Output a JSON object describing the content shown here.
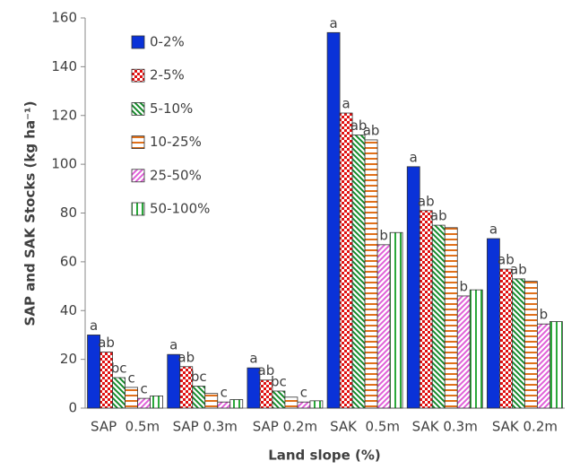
{
  "chart_data": {
    "type": "bar",
    "x_label": "Land slope (%)",
    "y_label": "SAP and SAK Stocks (kg ha⁻¹)",
    "categories": [
      "SAP  0.5m",
      "SAP 0.3m",
      "SAP 0.2m",
      "SAK  0.5m",
      "SAK 0.3m",
      "SAK 0.2m"
    ],
    "ylim": [
      0,
      160
    ],
    "yticks": [
      0,
      20,
      40,
      60,
      80,
      100,
      120,
      140,
      160
    ],
    "series": [
      {
        "name": "0-2%",
        "color": "#0a32d8",
        "pattern": "solid",
        "values": [
          30,
          22,
          16.5,
          154,
          99,
          69.5
        ],
        "letters": [
          "a",
          "a",
          "a",
          "a",
          "a",
          "a"
        ]
      },
      {
        "name": "2-5%",
        "color": "#e01010",
        "pattern": "checker",
        "values": [
          23,
          17,
          11.5,
          121,
          81,
          57
        ],
        "letters": [
          "ab",
          "ab",
          "ab",
          "a",
          "ab",
          "ab"
        ]
      },
      {
        "name": "5-10%",
        "color": "#158a2a",
        "pattern": "diagonal",
        "values": [
          12.5,
          9,
          7,
          112,
          75,
          53
        ],
        "letters": [
          "bc",
          "bc",
          "bc",
          "ab",
          "ab",
          "ab"
        ]
      },
      {
        "name": "10-25%",
        "color": "#e0701a",
        "pattern": "horizontal",
        "values": [
          8.5,
          6,
          4.5,
          110,
          74,
          52
        ],
        "letters": [
          "c",
          null,
          null,
          "ab",
          null,
          null
        ]
      },
      {
        "name": "25-50%",
        "color": "#e060d8",
        "pattern": "diagonal-reverse",
        "values": [
          4,
          2.5,
          2.5,
          67,
          46,
          34.5
        ],
        "letters": [
          "c",
          "c",
          "c",
          "b",
          "b",
          "b"
        ]
      },
      {
        "name": "50-100%",
        "color": "#2aa83a",
        "pattern": "vertical",
        "values": [
          5,
          3.5,
          3,
          72,
          48.5,
          35.5
        ],
        "letters": [
          null,
          null,
          null,
          null,
          null,
          null
        ]
      }
    ]
  }
}
